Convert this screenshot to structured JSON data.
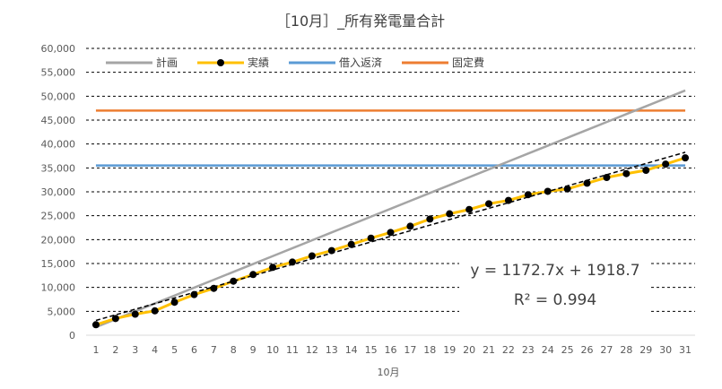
{
  "chart_data": {
    "type": "line",
    "title": "［10月］_所有発電量合計",
    "xlabel": "10月",
    "ylabel": "",
    "ylim": [
      0,
      60000
    ],
    "ytick_step": 5000,
    "grid": true,
    "legend_position": "top-left",
    "x": [
      1,
      2,
      3,
      4,
      5,
      6,
      7,
      8,
      9,
      10,
      11,
      12,
      13,
      14,
      15,
      16,
      17,
      18,
      19,
      20,
      21,
      22,
      23,
      24,
      25,
      26,
      27,
      28,
      29,
      30,
      31
    ],
    "series": [
      {
        "name": "計画",
        "color": "#a5a5a5",
        "style": "line",
        "values": [
          1700,
          3350,
          5000,
          6650,
          8300,
          9950,
          11600,
          13250,
          14900,
          16550,
          18200,
          19850,
          21500,
          23150,
          24800,
          26450,
          28100,
          29750,
          31400,
          33050,
          34700,
          36350,
          38000,
          39650,
          41300,
          42950,
          44600,
          46250,
          47900,
          49550,
          51200
        ]
      },
      {
        "name": "実績",
        "color": "#000000",
        "line_color": "#ffc000",
        "style": "line-marker",
        "values": [
          2200,
          3500,
          4400,
          5100,
          6900,
          8500,
          9800,
          11300,
          12700,
          14200,
          15300,
          16600,
          17700,
          19000,
          20300,
          21500,
          22800,
          24300,
          25400,
          26300,
          27500,
          28200,
          29400,
          30100,
          30600,
          31800,
          33000,
          33800,
          34500,
          35800,
          37100
        ]
      },
      {
        "name": "借入返済",
        "color": "#5b9bd5",
        "style": "line",
        "values": [
          35500,
          35500,
          35500,
          35500,
          35500,
          35500,
          35500,
          35500,
          35500,
          35500,
          35500,
          35500,
          35500,
          35500,
          35500,
          35500,
          35500,
          35500,
          35500,
          35500,
          35500,
          35500,
          35500,
          35500,
          35500,
          35500,
          35500,
          35500,
          35500,
          35500,
          35500
        ]
      },
      {
        "name": "固定費",
        "color": "#ed7d31",
        "style": "line",
        "values": [
          47000,
          47000,
          47000,
          47000,
          47000,
          47000,
          47000,
          47000,
          47000,
          47000,
          47000,
          47000,
          47000,
          47000,
          47000,
          47000,
          47000,
          47000,
          47000,
          47000,
          47000,
          47000,
          47000,
          47000,
          47000,
          47000,
          47000,
          47000,
          47000,
          47000,
          47000
        ]
      }
    ],
    "trendline": {
      "slope": 1172.7,
      "intercept": 1918.7,
      "equation": "y = 1172.7x + 1918.7",
      "r_squared": "R² = 0.994",
      "color": "#000000"
    }
  }
}
